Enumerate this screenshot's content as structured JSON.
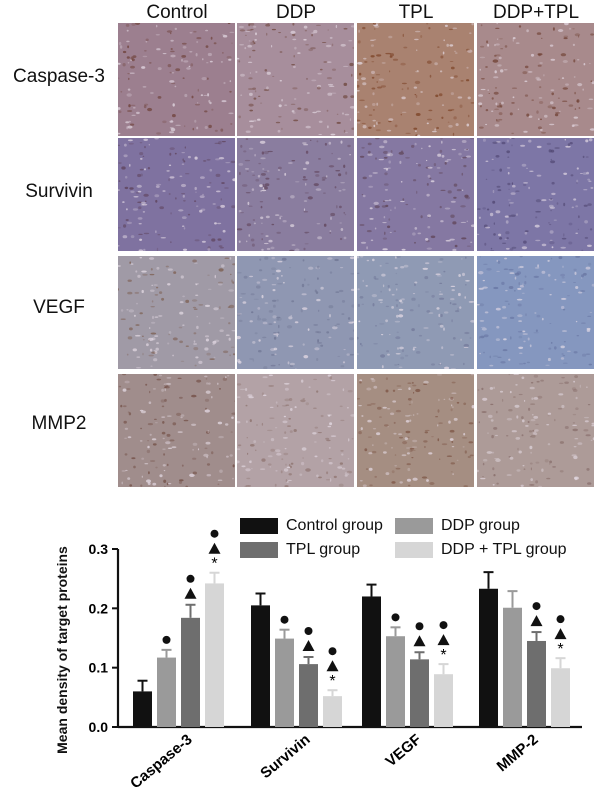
{
  "micrographs": {
    "columns": [
      "Control",
      "DDP",
      "TPL",
      "DDP+TPL"
    ],
    "rows": [
      "Caspase-3",
      "Survivin",
      "VEGF",
      "MMP2"
    ]
  },
  "chart_data": {
    "type": "bar",
    "title": "",
    "xlabel": "",
    "ylabel": "Mean density of target proteins",
    "ylim": [
      0,
      0.3
    ],
    "yticks": [
      "0.0",
      "0.1",
      "0.2",
      "0.3"
    ],
    "categories": [
      "Caspase-3",
      "Survivin",
      "VEGF",
      "MMP-2"
    ],
    "series": [
      {
        "name": "Control group",
        "color": "#111111",
        "values": [
          0.06,
          0.205,
          0.22,
          0.233
        ],
        "errors": [
          0.018,
          0.02,
          0.02,
          0.028
        ]
      },
      {
        "name": "DDP group",
        "color": "#9a9a9a",
        "values": [
          0.117,
          0.149,
          0.153,
          0.201
        ],
        "errors": [
          0.013,
          0.015,
          0.015,
          0.028
        ]
      },
      {
        "name": "TPL group",
        "color": "#6e6e6e",
        "values": [
          0.184,
          0.106,
          0.114,
          0.145
        ],
        "errors": [
          0.022,
          0.012,
          0.012,
          0.015
        ]
      },
      {
        "name": "DDP + TPL group",
        "color": "#d6d6d6",
        "values": [
          0.242,
          0.052,
          0.089,
          0.099
        ],
        "errors": [
          0.018,
          0.01,
          0.017,
          0.017
        ]
      }
    ],
    "annotations": [
      [
        [],
        [
          "●"
        ],
        [
          "●",
          "▲"
        ],
        [
          "●",
          "▲",
          "*"
        ]
      ],
      [
        [],
        [
          "●"
        ],
        [
          "●",
          "▲"
        ],
        [
          "●",
          "▲",
          "*"
        ]
      ],
      [
        [],
        [
          "●"
        ],
        [
          "●",
          "▲"
        ],
        [
          "●",
          "▲",
          "*"
        ]
      ],
      [
        [],
        [],
        [
          "●",
          "▲"
        ],
        [
          "●",
          "▲",
          "*"
        ]
      ]
    ],
    "legend_position": "top",
    "grid": false
  }
}
